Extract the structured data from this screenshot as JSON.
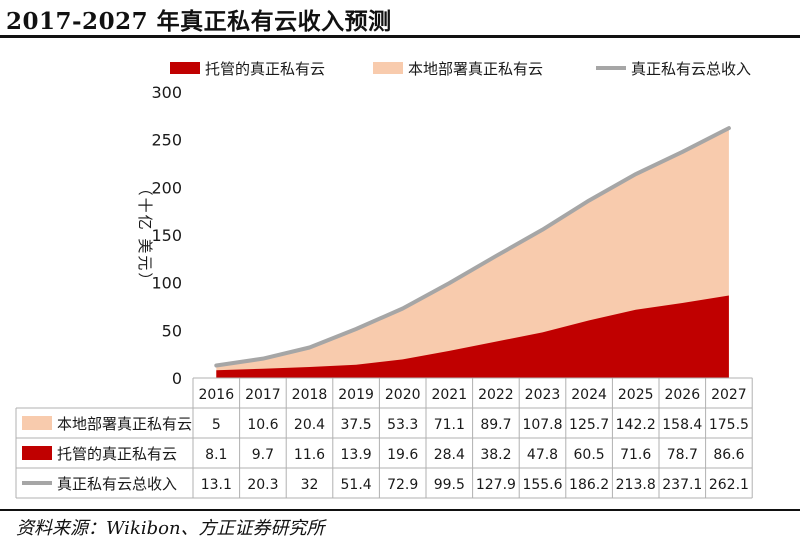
{
  "title": "2017-2027 年真正私有云收入预测",
  "source": "资料来源：Wikibon、方正证券研究所",
  "colors": {
    "managed": "#c00000",
    "onprem": "#f8cbad",
    "total": "#a6a6a6"
  },
  "chart_data": {
    "type": "area",
    "title": "2017-2027 年真正私有云收入预测",
    "ylabel": "（十亿 美元）",
    "xlabel": "",
    "ylim": [
      0,
      300
    ],
    "yticks": [
      0,
      50,
      100,
      150,
      200,
      250,
      300
    ],
    "categories": [
      "2016",
      "2017",
      "2018",
      "2019",
      "2020",
      "2021",
      "2022",
      "2023",
      "2024",
      "2025",
      "2026",
      "2027"
    ],
    "series": [
      {
        "key": "onprem",
        "name": "本地部署真正私有云",
        "type": "stacked-area",
        "values": [
          "5",
          "10.6",
          "20.4",
          "37.5",
          "53.3",
          "71.1",
          "89.7",
          "107.8",
          "125.7",
          "142.2",
          "158.4",
          "175.5"
        ]
      },
      {
        "key": "managed",
        "name": "托管的真正私有云",
        "type": "stacked-area",
        "values": [
          "8.1",
          "9.7",
          "11.6",
          "13.9",
          "19.6",
          "28.4",
          "38.2",
          "47.8",
          "60.5",
          "71.6",
          "78.7",
          "86.6"
        ]
      },
      {
        "key": "total",
        "name": "真正私有云总收入",
        "type": "line",
        "values": [
          "13.1",
          "20.3",
          "32",
          "51.4",
          "72.9",
          "99.5",
          "127.9",
          "155.6",
          "186.2",
          "213.8",
          "237.1",
          "262.1"
        ]
      }
    ],
    "legend_order": [
      "managed",
      "onprem",
      "total"
    ],
    "table_order": [
      "onprem",
      "managed",
      "total"
    ],
    "legend_position": "top",
    "grid": false
  }
}
